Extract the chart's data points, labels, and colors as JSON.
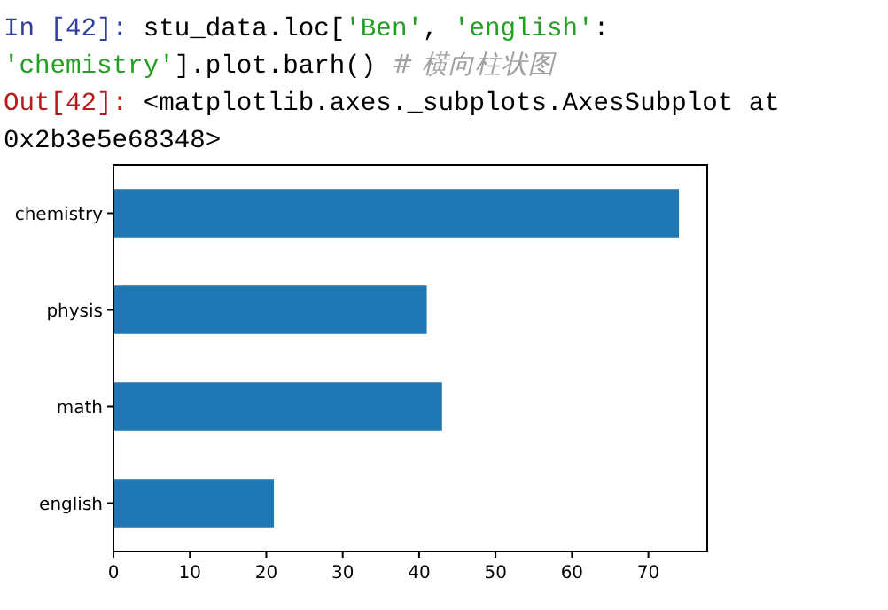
{
  "chart_data": {
    "type": "bar",
    "orientation": "horizontal",
    "categories": [
      "chemistry",
      "physis",
      "math",
      "english"
    ],
    "values": [
      74,
      41,
      43,
      21
    ],
    "color": "#1f77b4",
    "xlim": [
      0,
      77.7
    ],
    "xticks": [
      0,
      10,
      20,
      30,
      40,
      50,
      60,
      70
    ],
    "grid": false,
    "annotations": [
      "In [42]: stu_data.loc['Ben', 'english':",
      "'chemistry'].plot.barh() # 横向柱状图",
      "Out[42]: <matplotlib.axes._subplots.AxesSubplot at",
      "0x2b3e5e68348>"
    ]
  }
}
